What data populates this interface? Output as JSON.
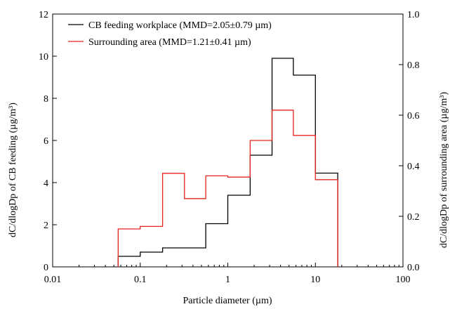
{
  "chart_data": {
    "type": "step",
    "x_scale": "log",
    "xlabel": "Particle diameter (µm)",
    "ylabel_left": "dC/dlogDp of CB feeding (µg/m³)",
    "ylabel_right": "dC/dlogDp of surrounding area (µg/m³)",
    "xlim": [
      0.01,
      100
    ],
    "ylim_left": [
      0,
      12
    ],
    "ylim_right": [
      0,
      1.0
    ],
    "x_ticks": [
      {
        "value": 0.01,
        "label": "0.01"
      },
      {
        "value": 0.1,
        "label": "0.1"
      },
      {
        "value": 1,
        "label": "1"
      },
      {
        "value": 10,
        "label": "10"
      },
      {
        "value": 100,
        "label": "100"
      }
    ],
    "y_ticks_left": [
      {
        "value": 0,
        "label": "0"
      },
      {
        "value": 2,
        "label": "2"
      },
      {
        "value": 4,
        "label": "4"
      },
      {
        "value": 6,
        "label": "6"
      },
      {
        "value": 8,
        "label": "8"
      },
      {
        "value": 10,
        "label": "10"
      },
      {
        "value": 12,
        "label": "12"
      }
    ],
    "y_ticks_right": [
      {
        "value": 0,
        "label": "0.0"
      },
      {
        "value": 0.2,
        "label": "0.2"
      },
      {
        "value": 0.4,
        "label": "0.4"
      },
      {
        "value": 0.6,
        "label": "0.6"
      },
      {
        "value": 0.8,
        "label": "0.8"
      },
      {
        "value": 1.0,
        "label": "1.0"
      }
    ],
    "legend_position": "top-left",
    "grid": false,
    "series": [
      {
        "name": "CB feeding workplace (MMD=2.05±0.79 µm)",
        "color": "#000000",
        "axis": "left",
        "bin_edges": [
          0.056,
          0.1,
          0.18,
          0.32,
          0.56,
          1.0,
          1.8,
          3.2,
          5.6,
          10,
          18
        ],
        "values": [
          0.5,
          0.7,
          0.9,
          0.9,
          2.05,
          3.4,
          5.3,
          9.9,
          9.1,
          4.45
        ]
      },
      {
        "name": "Surrounding area (MMD=1.21±0.41 µm)",
        "color": "#e8231f",
        "axis": "right",
        "bin_edges": [
          0.056,
          0.1,
          0.18,
          0.32,
          0.56,
          1.0,
          1.8,
          3.2,
          5.6,
          10,
          18
        ],
        "values": [
          0.15,
          0.16,
          0.37,
          0.27,
          0.36,
          0.355,
          0.5,
          0.62,
          0.52,
          0.345
        ]
      }
    ]
  }
}
